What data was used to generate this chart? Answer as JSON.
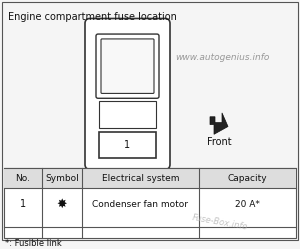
{
  "title": "Engine compartment fuse location",
  "watermark": "www.autogenius.info",
  "watermark_color": "#888888",
  "front_label": "Front",
  "table_headers": [
    "No.",
    "Symbol",
    "Electrical system",
    "Capacity"
  ],
  "table_rows": [
    [
      "1",
      "★",
      "Condenser fan motor",
      "20 A*"
    ]
  ],
  "footnote": "*: Fusible link",
  "bg_color": "#f5f5f5",
  "border_color": "#555555",
  "table_bg": "#ffffff",
  "table_header_bg": "#e0e0e0",
  "fuse_box_color": "#ffffff",
  "fuse_outline": "#333333",
  "watermark2": "Fuse-Box.info",
  "watermark2_color": "#aaaaaa"
}
